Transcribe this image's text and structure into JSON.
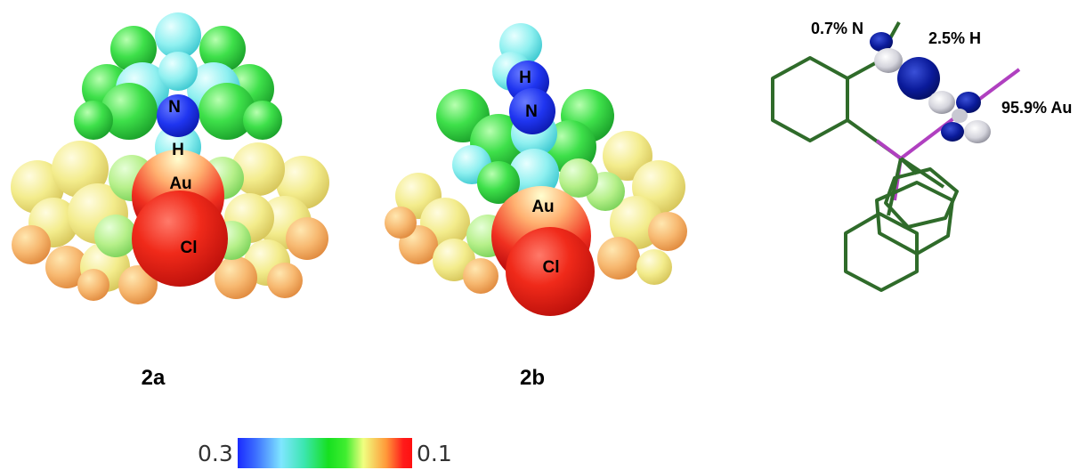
{
  "panel_a": {
    "label": "2a",
    "atoms": {
      "n": "N",
      "h": "H",
      "au": "Au",
      "cl": "Cl"
    }
  },
  "panel_b": {
    "label": "2b",
    "atoms": {
      "h": "H",
      "n": "N",
      "au": "Au",
      "cl": "Cl"
    }
  },
  "panel_c": {
    "annotations": {
      "n": "0.7% N",
      "h": "2.5% H",
      "au": "95.9% Au"
    }
  },
  "colorbar": {
    "min_label": "0.3",
    "max_label": "0.1",
    "colors": [
      "#1a2bff",
      "#7fe6ff",
      "#16e020",
      "#f0ff80",
      "#ff9a3a",
      "#ff1a1a"
    ]
  }
}
